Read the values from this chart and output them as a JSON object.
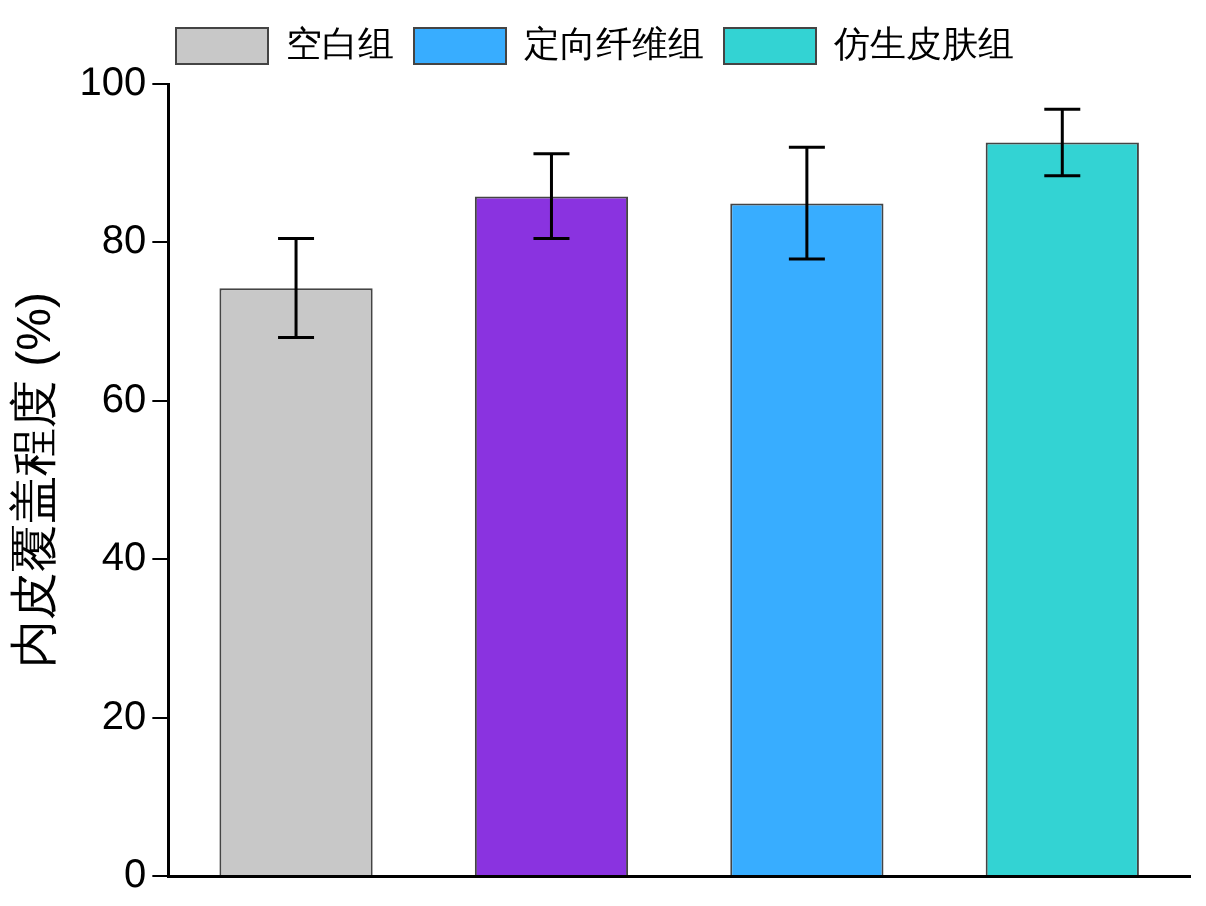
{
  "chart_data": {
    "type": "bar",
    "ylabel": "内皮覆盖程度 (%)",
    "categories": [
      null,
      null,
      null,
      null
    ],
    "series": [
      {
        "name": "空白组",
        "color": "#c8c8c8",
        "values": [
          74.2,
          null,
          null,
          null
        ],
        "errors": [
          [
            68,
            80.5
          ],
          null,
          null,
          null
        ]
      },
      {
        "color": "#8a33e0",
        "values": [
          null,
          85.8,
          null,
          null
        ],
        "errors": [
          null,
          [
            80.5,
            91.2
          ],
          null,
          null
        ]
      },
      {
        "name": "定向纤维组",
        "color": "#38adff",
        "values": [
          null,
          null,
          84.9,
          null
        ],
        "errors": [
          null,
          null,
          [
            77.9,
            92
          ],
          null
        ]
      },
      {
        "name": "仿生皮肤组",
        "color": "#33d3d3",
        "values": [
          null,
          null,
          null,
          92.6
        ],
        "errors": [
          null,
          null,
          null,
          [
            88.4,
            96.8
          ]
        ]
      }
    ],
    "ylim": [
      0,
      100
    ],
    "yticks": [
      0,
      20,
      40,
      60,
      80,
      100
    ],
    "grid": false,
    "legend": "top",
    "tick_labels": "y"
  }
}
